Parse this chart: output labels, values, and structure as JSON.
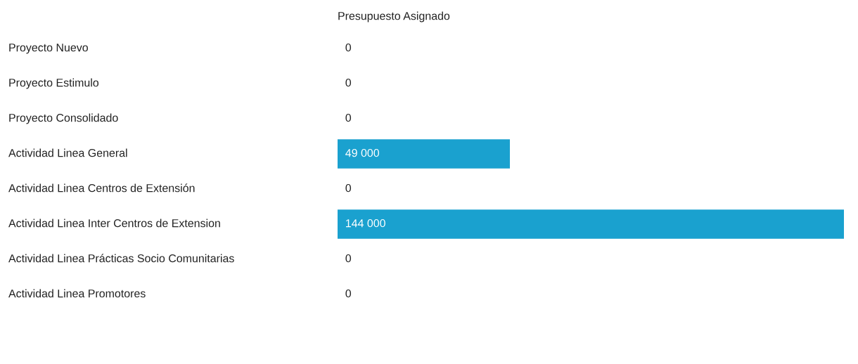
{
  "chart_data": {
    "type": "bar",
    "orientation": "horizontal",
    "title": "Presupuesto Asignado",
    "categories": [
      "Proyecto Nuevo",
      "Proyecto Estimulo",
      "Proyecto Consolidado",
      "Actividad Linea General",
      "Actividad Linea Centros de Extensión",
      "Actividad Linea Inter Centros de Extension",
      "Actividad Linea Prácticas Socio Comunitarias",
      "Actividad Linea Promotores"
    ],
    "values": [
      0,
      0,
      0,
      49000,
      0,
      144000,
      0,
      0
    ],
    "value_labels": [
      "0",
      "0",
      "0",
      "49 000",
      "0",
      "144 000",
      "0",
      "0"
    ],
    "color": "#1aa1cf"
  }
}
